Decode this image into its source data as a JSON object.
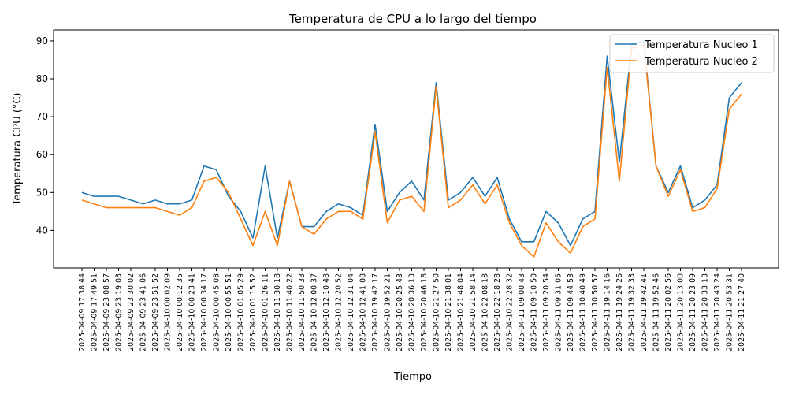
{
  "chart_data": {
    "type": "line",
    "title": "Temperatura de CPU a lo largo del tiempo",
    "xlabel": "Tiempo",
    "ylabel": "Temperatura CPU (°C)",
    "ylim": [
      30.1,
      92.9
    ],
    "yticks": [
      40,
      50,
      60,
      70,
      80,
      90
    ],
    "grid": false,
    "legend_position": "top-right",
    "categories": [
      "2025-04-09 17:38:44",
      "2025-04-09 17:49:51",
      "2025-04-09 23:08:57",
      "2025-04-09 23:19:03",
      "2025-04-09 23:30:02",
      "2025-04-09 23:41:06",
      "2025-04-09 23:51:52",
      "2025-04-10 00:02:09",
      "2025-04-10 00:12:35",
      "2025-04-10 00:23:41",
      "2025-04-10 00:34:17",
      "2025-04-10 00:45:08",
      "2025-04-10 00:55:51",
      "2025-04-10 01:05:29",
      "2025-04-10 01:15:52",
      "2025-04-10 01:26:11",
      "2025-04-10 11:30:18",
      "2025-04-10 11:40:22",
      "2025-04-10 11:50:33",
      "2025-04-10 12:00:37",
      "2025-04-10 12:10:48",
      "2025-04-10 12:20:52",
      "2025-04-10 12:31:04",
      "2025-04-10 12:41:08",
      "2025-04-10 19:42:17",
      "2025-04-10 19:52:21",
      "2025-04-10 20:25:43",
      "2025-04-10 20:36:13",
      "2025-04-10 20:46:18",
      "2025-04-10 21:27:50",
      "2025-04-10 21:38:01",
      "2025-04-10 21:48:04",
      "2025-04-10 21:58:14",
      "2025-04-10 22:08:18",
      "2025-04-10 22:18:28",
      "2025-04-10 22:28:32",
      "2025-04-11 09:00:43",
      "2025-04-11 09:10:50",
      "2025-04-11 09:20:54",
      "2025-04-11 09:31:05",
      "2025-04-11 09:44:53",
      "2025-04-11 10:40:49",
      "2025-04-11 10:50:57",
      "2025-04-11 19:14:16",
      "2025-04-11 19:24:26",
      "2025-04-11 19:32:33",
      "2025-04-11 19:42:41",
      "2025-04-11 19:52:46",
      "2025-04-11 20:02:56",
      "2025-04-11 20:13:00",
      "2025-04-11 20:23:09",
      "2025-04-11 20:33:13",
      "2025-04-11 20:43:24",
      "2025-04-11 20:53:31",
      "2025-04-11 21:27:40"
    ],
    "series": [
      {
        "name": "Temperatura Nucleo 1",
        "color": "#1f77b4",
        "values": [
          50,
          49,
          49,
          49,
          48,
          47,
          48,
          47,
          47,
          48,
          57,
          56,
          49,
          45,
          38,
          57,
          38,
          53,
          41,
          41,
          45,
          47,
          46,
          44,
          68,
          45,
          50,
          53,
          48,
          79,
          48,
          50,
          54,
          49,
          54,
          43,
          37,
          37,
          45,
          42,
          36,
          43,
          45,
          86,
          58,
          89,
          90,
          57,
          50,
          57,
          46,
          48,
          52,
          75,
          79
        ]
      },
      {
        "name": "Temperatura Nucleo 2",
        "color": "#ff7f0e",
        "values": [
          48,
          47,
          46,
          46,
          46,
          46,
          46,
          45,
          44,
          46,
          53,
          54,
          50,
          43,
          36,
          45,
          36,
          53,
          41,
          39,
          43,
          45,
          45,
          43,
          66,
          42,
          48,
          49,
          45,
          78,
          46,
          48,
          52,
          47,
          52,
          42,
          36,
          33,
          42,
          37,
          34,
          41,
          43,
          83,
          53,
          88,
          89,
          57,
          49,
          56,
          45,
          46,
          51,
          72,
          76
        ]
      }
    ]
  }
}
